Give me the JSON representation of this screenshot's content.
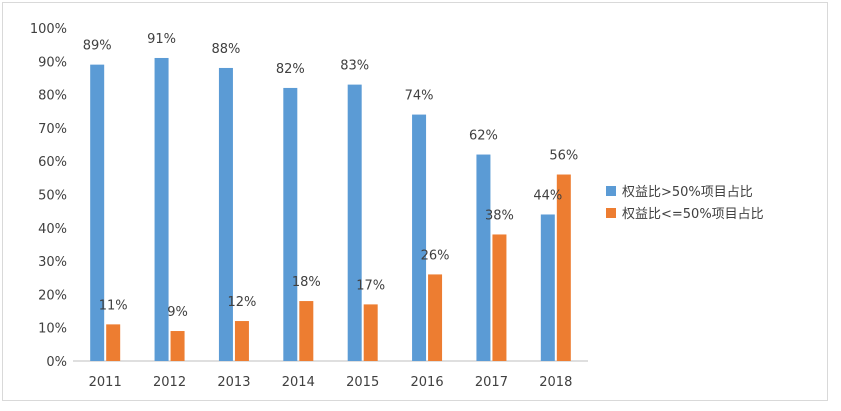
{
  "chart_data": {
    "type": "bar",
    "title": "",
    "xlabel": "",
    "ylabel": "",
    "categories": [
      "2011",
      "2012",
      "2013",
      "2014",
      "2015",
      "2016",
      "2017",
      "2018"
    ],
    "series": [
      {
        "name": "权益比>50%项目占比",
        "color": "#5b9bd5",
        "values": [
          89,
          91,
          88,
          82,
          83,
          74,
          62,
          44
        ]
      },
      {
        "name": "权益比<=50%项目占比",
        "color": "#ed7d31",
        "values": [
          11,
          9,
          12,
          18,
          17,
          26,
          38,
          56
        ]
      }
    ],
    "ylim": [
      0,
      100
    ],
    "yticks": [
      0,
      10,
      20,
      30,
      40,
      50,
      60,
      70,
      80,
      90,
      100
    ],
    "value_suffix": "%",
    "data_labels": true,
    "grid": false,
    "legend_position": "right"
  }
}
